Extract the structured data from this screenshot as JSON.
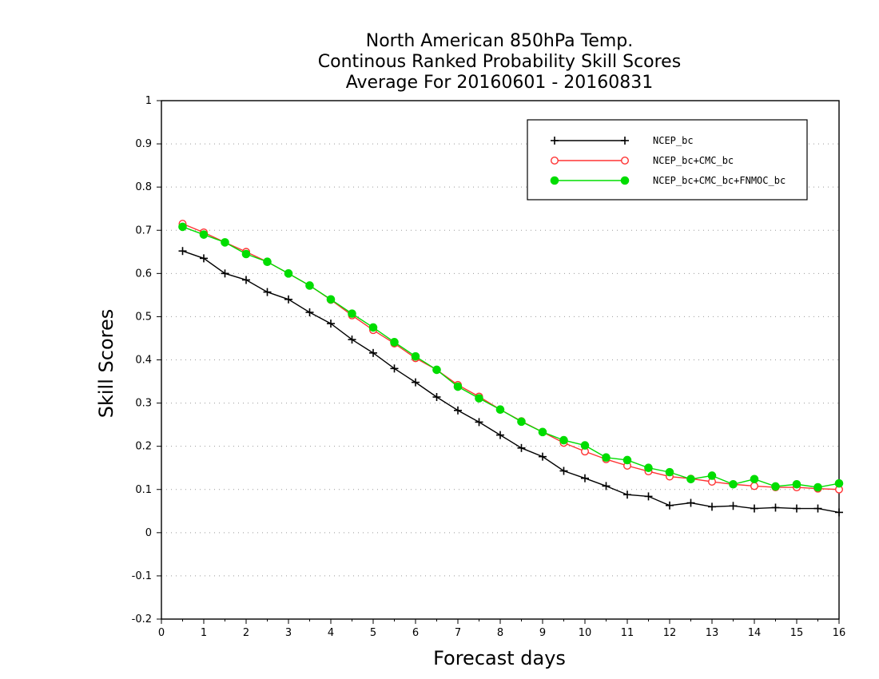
{
  "chart_data": {
    "type": "line",
    "title": [
      "North American 850hPa Temp.",
      "Continous Ranked Probability Skill Scores",
      "Average For 20160601 - 20160831"
    ],
    "xlabel": "Forecast days",
    "ylabel": "Skill Scores",
    "xlim": [
      0,
      16
    ],
    "ylim": [
      -0.2,
      1
    ],
    "xticks": [
      "0",
      "1",
      "2",
      "3",
      "4",
      "5",
      "6",
      "7",
      "8",
      "9",
      "10",
      "11",
      "12",
      "13",
      "14",
      "15",
      "16"
    ],
    "yticks": [
      "-0.2",
      "-0.1",
      "0",
      "0.1",
      "0.2",
      "0.3",
      "0.4",
      "0.5",
      "0.6",
      "0.7",
      "0.8",
      "0.9",
      "1"
    ],
    "grid": "horizontal dotted",
    "legend_position": "top-right",
    "x": [
      0.5,
      1,
      1.5,
      2,
      2.5,
      3,
      3.5,
      4,
      4.5,
      5,
      5.5,
      6,
      6.5,
      7,
      7.5,
      8,
      8.5,
      9,
      9.5,
      10,
      10.5,
      11,
      11.5,
      12,
      12.5,
      13,
      13.5,
      14,
      14.5,
      15,
      15.5,
      16
    ],
    "series": [
      {
        "name": "NCEP_bc",
        "color": "#000000",
        "marker": "plus",
        "values": [
          0.652,
          0.635,
          0.6,
          0.585,
          0.557,
          0.54,
          0.51,
          0.484,
          0.447,
          0.416,
          0.38,
          0.348,
          0.314,
          0.283,
          0.256,
          0.226,
          0.196,
          0.176,
          0.143,
          0.126,
          0.108,
          0.088,
          0.084,
          0.063,
          0.069,
          0.06,
          0.062,
          0.056,
          0.058,
          0.056,
          0.056,
          0.047
        ]
      },
      {
        "name": "NCEP_bc+CMC_bc",
        "color": "#ff3333",
        "marker": "open-circle",
        "values": [
          0.715,
          0.695,
          0.672,
          0.65,
          0.627,
          0.6,
          0.572,
          0.539,
          0.503,
          0.469,
          0.438,
          0.404,
          0.377,
          0.342,
          0.315,
          0.285,
          0.258,
          0.233,
          0.208,
          0.188,
          0.17,
          0.155,
          0.142,
          0.13,
          0.125,
          0.118,
          0.112,
          0.108,
          0.105,
          0.105,
          0.102,
          0.1
        ]
      },
      {
        "name": "NCEP_bc+CMC_bc+FNMOC_bc",
        "color": "#00dd00",
        "marker": "filled-circle",
        "values": [
          0.708,
          0.69,
          0.672,
          0.645,
          0.627,
          0.6,
          0.572,
          0.54,
          0.507,
          0.475,
          0.441,
          0.408,
          0.377,
          0.338,
          0.311,
          0.285,
          0.257,
          0.233,
          0.214,
          0.202,
          0.174,
          0.168,
          0.15,
          0.14,
          0.124,
          0.132,
          0.112,
          0.124,
          0.107,
          0.112,
          0.105,
          0.114
        ]
      }
    ]
  }
}
